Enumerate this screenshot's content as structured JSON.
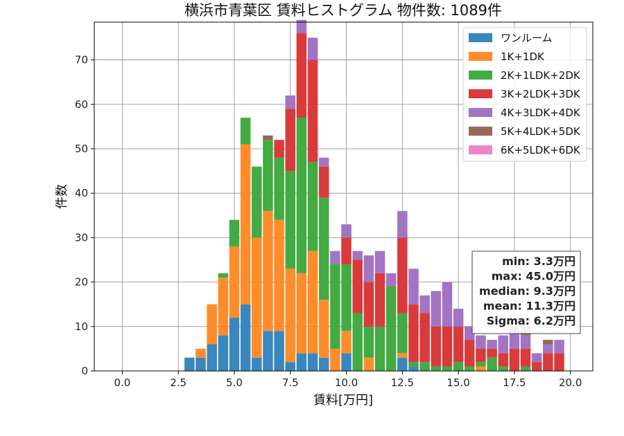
{
  "chart_data": {
    "type": "bar",
    "stacked": true,
    "title": "横浜市青葉区 賃料ヒストグラム  物件数: 1089件",
    "xlabel": "賃料[万円]",
    "ylabel": "件数",
    "xlim": [
      -1.25,
      21.0
    ],
    "ylim": [
      0,
      78.5
    ],
    "xticks": [
      0.0,
      2.5,
      5.0,
      7.5,
      10.0,
      12.5,
      15.0,
      17.5,
      20.0
    ],
    "xtick_labels": [
      "0.0",
      "2.5",
      "5.0",
      "7.5",
      "10.0",
      "12.5",
      "15.0",
      "17.5",
      "20.0"
    ],
    "yticks": [
      0,
      10,
      20,
      30,
      40,
      50,
      60,
      70
    ],
    "ytick_labels": [
      "0",
      "10",
      "20",
      "30",
      "40",
      "50",
      "60",
      "70"
    ],
    "grid": true,
    "legend_position": "top-right",
    "bin_width": 0.5,
    "bin_starts": [
      2.75,
      3.25,
      3.75,
      4.25,
      4.75,
      5.25,
      5.75,
      6.25,
      6.75,
      7.25,
      7.75,
      8.25,
      8.75,
      9.25,
      9.75,
      10.25,
      10.75,
      11.25,
      11.75,
      12.25,
      12.75,
      13.25,
      13.75,
      14.25,
      14.75,
      15.25,
      15.75,
      16.25,
      16.75,
      17.25,
      17.75,
      18.25,
      18.75,
      19.25
    ],
    "series": [
      {
        "name": "ワンルーム",
        "color": "#3a87be",
        "values": [
          3,
          3,
          6,
          8,
          12,
          15,
          3,
          9,
          9,
          2,
          4,
          4,
          3,
          0,
          4,
          0,
          0,
          0,
          0,
          3,
          1,
          0,
          0,
          0,
          0,
          0,
          0,
          0,
          0,
          0,
          0,
          0,
          0,
          0
        ]
      },
      {
        "name": "1K+1DK",
        "color": "#ff8c2a",
        "values": [
          0,
          2,
          9,
          13,
          16,
          36,
          27,
          27,
          25,
          21,
          18,
          23,
          13,
          5,
          5,
          0,
          3,
          0,
          0,
          1,
          0,
          0,
          0,
          0,
          0,
          0,
          1,
          0,
          0,
          0,
          0,
          0,
          0,
          0
        ]
      },
      {
        "name": "2K+1LDK+2DK",
        "color": "#43aa44",
        "values": [
          0,
          0,
          0,
          1,
          6,
          6,
          16,
          16,
          14,
          22,
          35,
          20,
          23,
          19,
          15,
          13,
          7,
          10,
          19,
          9,
          1,
          2,
          1,
          1,
          2,
          1,
          1,
          3,
          1,
          0,
          1,
          0,
          0,
          0
        ]
      },
      {
        "name": "3K+2LDK+3DK",
        "color": "#d93a3b",
        "values": [
          0,
          0,
          0,
          0,
          0,
          0,
          0,
          0,
          4,
          14,
          19,
          23,
          7,
          0,
          6,
          12,
          10,
          12,
          0,
          17,
          13,
          11,
          9,
          9,
          8,
          6,
          3,
          2,
          3,
          5,
          4,
          2,
          4,
          4
        ]
      },
      {
        "name": "4K+3LDK+4DK",
        "color": "#a275c4",
        "values": [
          0,
          0,
          0,
          0,
          0,
          0,
          0,
          0,
          0,
          3,
          3,
          5,
          2,
          3,
          3,
          2,
          6,
          5,
          3,
          6,
          8,
          4,
          8,
          10,
          4,
          3,
          3,
          2,
          4,
          4,
          3,
          2,
          2,
          3
        ]
      },
      {
        "name": "5K+4LDK+5DK",
        "color": "#996758",
        "values": [
          0,
          0,
          0,
          0,
          0,
          0,
          0,
          1,
          0,
          0,
          0,
          0,
          0,
          0,
          0,
          0,
          0,
          0,
          0,
          0,
          0,
          0,
          0,
          0,
          0,
          0,
          0,
          0,
          0,
          1,
          2,
          0,
          1,
          0
        ]
      },
      {
        "name": "6K+5LDK+6DK",
        "color": "#ea87c8",
        "values": [
          0,
          0,
          0,
          0,
          0,
          0,
          0,
          0,
          0,
          0,
          0,
          0,
          0,
          0,
          0,
          0,
          0,
          0,
          0,
          0,
          0,
          0,
          0,
          0,
          0,
          0,
          0,
          0,
          0,
          0,
          2,
          0,
          0,
          0
        ]
      }
    ],
    "stats": [
      "min: 3.3万円",
      "max: 45.0万円",
      "median: 9.3万円",
      "mean: 11.3万円",
      "Sigma: 6.2万円"
    ]
  }
}
